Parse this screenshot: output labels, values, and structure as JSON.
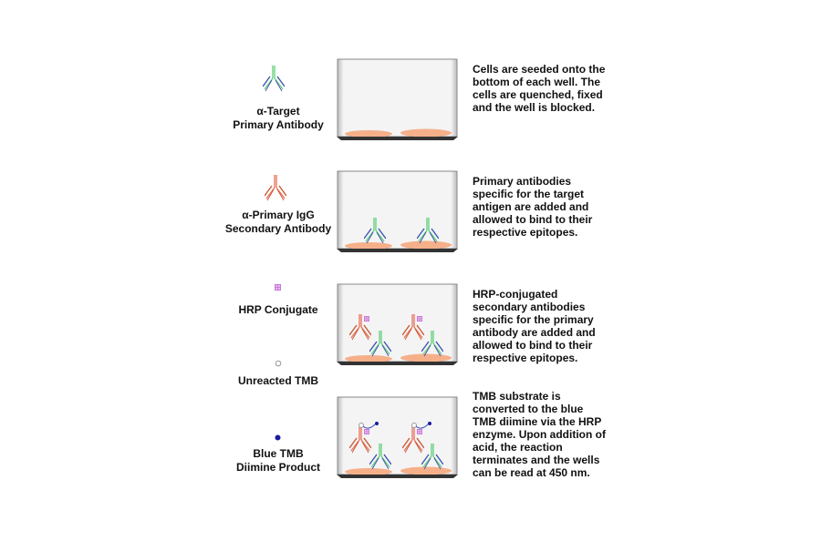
{
  "legend": {
    "primary_antibody": [
      "α-Target",
      "Primary Antibody"
    ],
    "secondary_antibody": [
      "α-Primary IgG",
      "Secondary Antibody"
    ],
    "hrp": "HRP Conjugate",
    "unreacted_tmb": "Unreacted TMB",
    "blue_tmb": [
      "Blue TMB",
      "Diimine Product"
    ]
  },
  "steps": [
    "Cells are seeded onto the bottom of each well. The cells are quenched, fixed and the well is blocked.",
    "Primary antibodies specific for the target antigen are added and allowed to bind to their respective epitopes.",
    "HRP-conjugated secondary antibodies specific for the primary antibody are added and allowed to bind to their respective epitopes.",
    "TMB substrate is converted to the blue TMB diimine via the HRP enzyme. Upon addition of acid, the reaction terminates and the wells can be read at 450 nm."
  ],
  "colors": {
    "primary_heavy": "#5fcf7a",
    "primary_light": "#3a4fb0",
    "secondary_heavy": "#e8705a",
    "secondary_light": "#c8552e",
    "hrp": "#c070d0",
    "cell": "#f5b08a",
    "blue_tmb": "#1a1aa0"
  }
}
